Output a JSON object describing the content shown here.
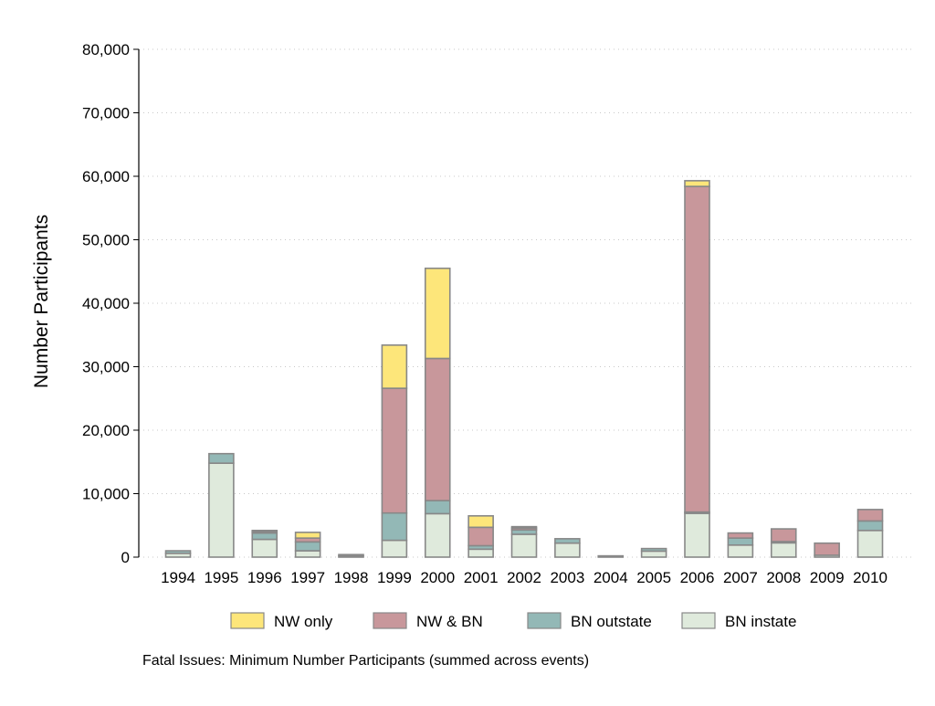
{
  "chart_data": {
    "type": "bar",
    "stacked": true,
    "ylabel": "Number Participants",
    "xlabel": "",
    "caption": "Fatal Issues: Minimum Number Participants (summed across events)",
    "ylim": [
      0,
      80000
    ],
    "yticks": [
      0,
      10000,
      20000,
      30000,
      40000,
      50000,
      60000,
      70000,
      80000
    ],
    "ytick_labels": [
      "0",
      "10,000",
      "20,000",
      "30,000",
      "40,000",
      "50,000",
      "60,000",
      "70,000",
      "80,000"
    ],
    "grid": true,
    "legend_placement": "bottom",
    "categories": [
      "1994",
      "1995",
      "1996",
      "1997",
      "1998",
      "1999",
      "2000",
      "2001",
      "2002",
      "2003",
      "2004",
      "2005",
      "2006",
      "2007",
      "2008",
      "2009",
      "2010"
    ],
    "series": [
      {
        "name": "BN instate",
        "color": "#dfeadc",
        "values": [
          600,
          14800,
          2800,
          1000,
          200,
          2650,
          6850,
          1250,
          3600,
          2200,
          100,
          950,
          6900,
          1900,
          2250,
          300,
          4200
        ]
      },
      {
        "name": "BN outstate",
        "color": "#93b8b6",
        "values": [
          400,
          1500,
          1000,
          1400,
          200,
          4300,
          2050,
          550,
          700,
          700,
          100,
          400,
          200,
          1100,
          200,
          0,
          1500
        ]
      },
      {
        "name": "NW & BN",
        "color": "#c8979b",
        "values": [
          0,
          0,
          200,
          600,
          0,
          19650,
          22400,
          2900,
          300,
          0,
          0,
          0,
          51300,
          800,
          2000,
          1900,
          1800
        ]
      },
      {
        "name": "NW only",
        "color": "#fde67a",
        "values": [
          0,
          0,
          200,
          900,
          0,
          6800,
          14200,
          1800,
          200,
          0,
          0,
          0,
          900,
          0,
          0,
          0,
          0
        ]
      }
    ],
    "legend_order": [
      "NW only",
      "NW & BN",
      "BN outstate",
      "BN instate"
    ],
    "outline_color": "#888888"
  }
}
